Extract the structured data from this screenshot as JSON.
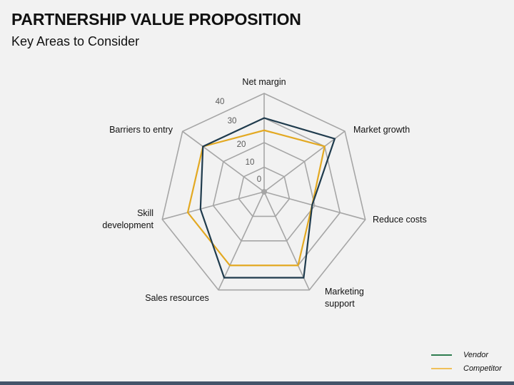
{
  "header": {
    "title": "PARTNERSHIP VALUE PROPOSITION",
    "subtitle": "Key Areas to Consider"
  },
  "colors": {
    "vendor_line": "#1f3b4d",
    "competitor_line": "#e3a922",
    "vendor_legend": "#2e7d4f",
    "competitor_legend": "#f0c05a",
    "grid": "#a6a6a6",
    "bottom_bar": "#44546a"
  },
  "legend": [
    {
      "label": "Vendor",
      "color": "#2e7d4f"
    },
    {
      "label": "Competitor",
      "color": "#f0c05a"
    }
  ],
  "chart_data": {
    "type": "radar",
    "title": "",
    "categories": [
      "Net margin",
      "Market growth",
      "Reduce costs",
      "Marketing support",
      "Sales resources",
      "Skill development",
      "Barriers to entry"
    ],
    "series": [
      {
        "name": "Vendor",
        "values": [
          30,
          35,
          19,
          35,
          35,
          25,
          30
        ]
      },
      {
        "name": "Competitor",
        "values": [
          25,
          30,
          19,
          30,
          30,
          30,
          30
        ]
      }
    ],
    "rlim": [
      0,
      40
    ],
    "ticks": [
      0,
      10,
      20,
      30,
      40
    ],
    "grid": true,
    "legend_position": "bottom-right"
  }
}
